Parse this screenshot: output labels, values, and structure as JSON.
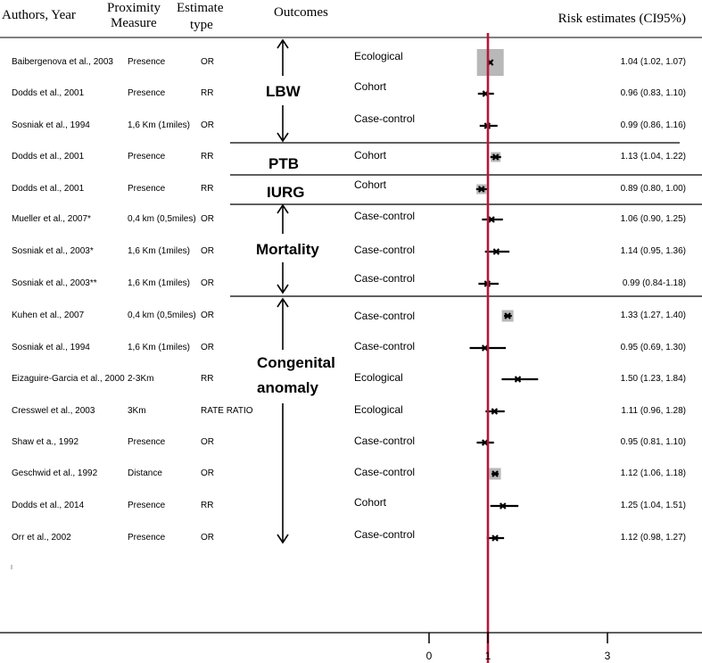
{
  "headers": {
    "authors": "Authors, Year",
    "proximity_1": "Proximity",
    "proximity_2": "Measure",
    "estimate_1": "Estimate",
    "estimate_2": "type",
    "outcomes": "Outcomes",
    "risk": "Risk estimates  (CI95%)"
  },
  "groups": {
    "lbw": "LBW",
    "ptb": "PTB",
    "iurg": "IURG",
    "mortality": "Mortality",
    "congenital_1": "Congenital",
    "congenital_2": "anomaly"
  },
  "colors": {
    "reference_line": "#b5173b",
    "box": "#b8b8b8"
  },
  "chart_data": {
    "type": "forest",
    "reference_value": 1,
    "axis_ticks": [
      0,
      1,
      3
    ],
    "studies": [
      {
        "author": "Baibergenova et al., 2003",
        "proximity": "Presence",
        "estimate_type": "OR",
        "outcome_group": "LBW",
        "design": "Ecological",
        "estimate": 1.04,
        "ci_low": 1.02,
        "ci_high": 1.07,
        "label": "1.04 (1.02, 1.07)",
        "weight": "large"
      },
      {
        "author": "Dodds et al., 2001",
        "proximity": "Presence",
        "estimate_type": "RR",
        "outcome_group": "LBW",
        "design": "Cohort",
        "estimate": 0.96,
        "ci_low": 0.83,
        "ci_high": 1.1,
        "label": "0.96 (0.83, 1.10)",
        "weight": "none"
      },
      {
        "author": "Sosniak et al., 1994",
        "proximity": "1,6 Km (1miles)",
        "estimate_type": "OR",
        "outcome_group": "LBW",
        "design": "Case-control",
        "estimate": 0.99,
        "ci_low": 0.86,
        "ci_high": 1.16,
        "label": "0.99 (0.86, 1.16)",
        "weight": "none"
      },
      {
        "author": "Dodds et al., 2001",
        "proximity": "Presence",
        "estimate_type": "RR",
        "outcome_group": "PTB",
        "design": "Cohort",
        "estimate": 1.13,
        "ci_low": 1.04,
        "ci_high": 1.22,
        "label": "1.13 (1.04, 1.22)",
        "weight": "small"
      },
      {
        "author": "Dodds et al., 2001",
        "proximity": "Presence",
        "estimate_type": "RR",
        "outcome_group": "IURG",
        "design": "Cohort",
        "estimate": 0.89,
        "ci_low": 0.8,
        "ci_high": 1.0,
        "label": "0.89 (0.80, 1.00)",
        "weight": "small"
      },
      {
        "author": "Mueller et al., 2007*",
        "proximity": "0,4 km (0,5miles)",
        "estimate_type": "OR",
        "outcome_group": "Mortality",
        "design": "Case-control",
        "estimate": 1.06,
        "ci_low": 0.9,
        "ci_high": 1.25,
        "label": "1.06 (0.90, 1.25)",
        "weight": "none"
      },
      {
        "author": "Sosniak et al., 2003*",
        "proximity": "1,6 Km (1miles)",
        "estimate_type": "OR",
        "outcome_group": "Mortality",
        "design": "Case-control",
        "estimate": 1.14,
        "ci_low": 0.95,
        "ci_high": 1.36,
        "label": "1.14 (0.95, 1.36)",
        "weight": "none"
      },
      {
        "author": "Sosniak et al., 2003**",
        "proximity": "1,6 Km (1miles)",
        "estimate_type": "OR",
        "outcome_group": "Mortality",
        "design": "Case-control",
        "estimate": 0.99,
        "ci_low": 0.84,
        "ci_high": 1.18,
        "label": "0.99 (0.84-1.18)",
        "weight": "none"
      },
      {
        "author": "Kuhen et al., 2007",
        "proximity": "0,4 km (0,5miles)",
        "estimate_type": "OR",
        "outcome_group": "Congenital anomaly",
        "design": "Case-control",
        "estimate": 1.33,
        "ci_low": 1.27,
        "ci_high": 1.4,
        "label": "1.33 (1.27, 1.40)",
        "weight": "medium"
      },
      {
        "author": "Sosniak et al., 1994",
        "proximity": "1,6 Km (1miles)",
        "estimate_type": "OR",
        "outcome_group": "Congenital anomaly",
        "design": "Case-control",
        "estimate": 0.95,
        "ci_low": 0.69,
        "ci_high": 1.3,
        "label": "0.95 (0.69, 1.30)",
        "weight": "none"
      },
      {
        "author": "Eizaguire-Garcia et al., 2000",
        "proximity": "2-3Km",
        "estimate_type": "RR",
        "outcome_group": "Congenital anomaly",
        "design": "Ecological",
        "estimate": 1.5,
        "ci_low": 1.23,
        "ci_high": 1.84,
        "label": "1.50 (1.23, 1.84)",
        "weight": "none"
      },
      {
        "author": "Cresswel et al., 2003",
        "proximity": "3Km",
        "estimate_type": "RATE RATIO",
        "outcome_group": "Congenital anomaly",
        "design": "Ecological",
        "estimate": 1.11,
        "ci_low": 0.96,
        "ci_high": 1.28,
        "label": "1.11 (0.96, 1.28)",
        "weight": "none"
      },
      {
        "author": "Shaw et a., 1992",
        "proximity": "Presence",
        "estimate_type": "OR",
        "outcome_group": "Congenital anomaly",
        "design": "Case-control",
        "estimate": 0.95,
        "ci_low": 0.81,
        "ci_high": 1.1,
        "label": "0.95 (0.81, 1.10)",
        "weight": "none"
      },
      {
        "author": "Geschwid et al., 1992",
        "proximity": "Distance",
        "estimate_type": "OR",
        "outcome_group": "Congenital anomaly",
        "design": "Case-control",
        "estimate": 1.12,
        "ci_low": 1.06,
        "ci_high": 1.18,
        "label": "1.12 (1.06, 1.18)",
        "weight": "medium"
      },
      {
        "author": "Dodds et al., 2014",
        "proximity": "Presence",
        "estimate_type": "RR",
        "outcome_group": "Congenital anomaly",
        "design": "Cohort",
        "estimate": 1.25,
        "ci_low": 1.04,
        "ci_high": 1.51,
        "label": "1.25 (1.04, 1.51)",
        "weight": "none"
      },
      {
        "author": "Orr et al., 2002",
        "proximity": "Presence",
        "estimate_type": "OR",
        "outcome_group": "Congenital anomaly",
        "design": "Case-control",
        "estimate": 1.12,
        "ci_low": 0.98,
        "ci_high": 1.27,
        "label": "1.12 (0.98, 1.27)",
        "weight": "none"
      }
    ]
  }
}
